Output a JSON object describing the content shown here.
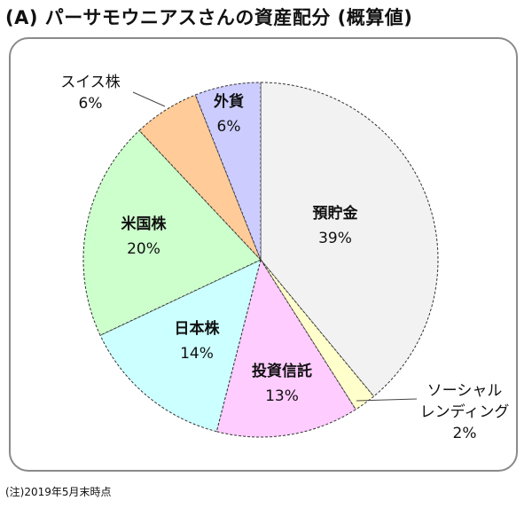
{
  "title": "(A) パーサモウニアスさんの資産配分 (概算値)",
  "footnote": "(注)2019年5月末時点",
  "chart_data": {
    "type": "pie",
    "title": "(A) パーサモウニアスさんの資産配分 (概算値)",
    "categories": [
      "預貯金",
      "ソーシャルレンディング",
      "投資信託",
      "日本株",
      "米国株",
      "スイス株",
      "外貨"
    ],
    "values": [
      39,
      2,
      13,
      14,
      20,
      6,
      6
    ],
    "value_unit": "%",
    "labels": [
      {
        "name": "預貯金",
        "value": "39%"
      },
      {
        "name": "ソーシャル\nレンディング",
        "value": "2%"
      },
      {
        "name": "投資信託",
        "value": "13%"
      },
      {
        "name": "日本株",
        "value": "14%"
      },
      {
        "name": "米国株",
        "value": "20%"
      },
      {
        "name": "スイス株",
        "value": "6%"
      },
      {
        "name": "外貨",
        "value": "6%"
      }
    ],
    "colors": [
      "#f2f2f2",
      "#ffffcc",
      "#ffccff",
      "#ccffff",
      "#ccffcc",
      "#ffcc99",
      "#ccccff"
    ],
    "start_angle_deg": 0,
    "direction": "clockwise",
    "note": "(注)2019年5月末時点"
  }
}
